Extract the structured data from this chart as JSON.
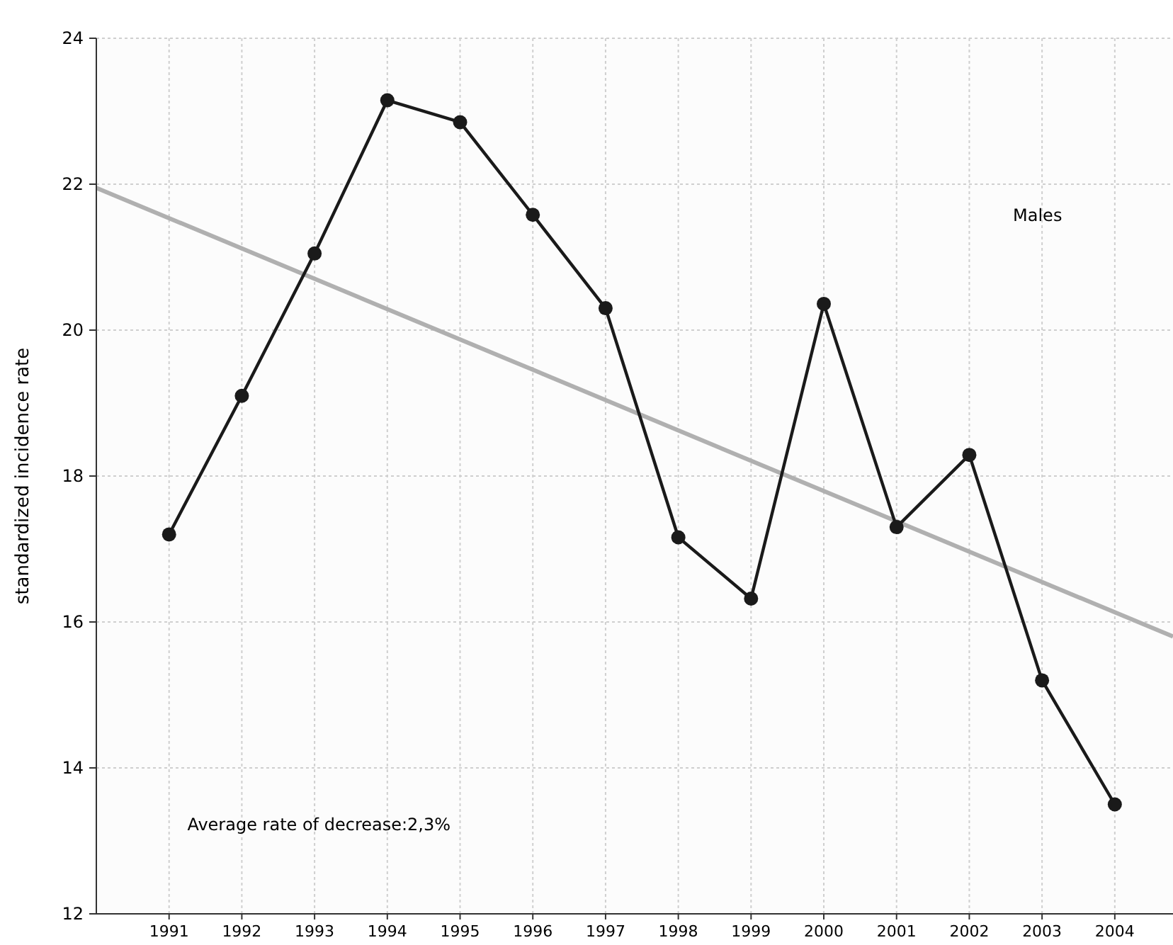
{
  "chart_data": {
    "type": "line",
    "ylabel": "standardized incidence rate",
    "x": [
      1991,
      1992,
      1993,
      1994,
      1995,
      1996,
      1997,
      1998,
      1999,
      2000,
      2001,
      2002,
      2003,
      2004
    ],
    "series": [
      {
        "color": "#1a1a1a",
        "values": [
          17.2,
          19.1,
          21.05,
          23.15,
          22.85,
          21.58,
          20.3,
          17.16,
          16.32,
          20.36,
          17.3,
          18.29,
          15.2,
          13.5
        ],
        "marker": "circle"
      },
      {
        "type": "line",
        "color": "#b0b0b0",
        "x": [
          1990,
          2004.8
        ],
        "values": [
          21.95,
          15.8
        ],
        "marker": "none"
      }
    ],
    "xlim": [
      1990,
      2004.8
    ],
    "xticks": [
      1991,
      1992,
      1993,
      1994,
      1995,
      1996,
      1997,
      1998,
      1999,
      2000,
      2001,
      2002,
      2003,
      2004
    ],
    "ylim": [
      12,
      24
    ],
    "yticks": [
      12,
      14,
      16,
      18,
      20,
      22,
      24
    ],
    "grid": true,
    "annotations": [
      "Males",
      "Average rate of decrease:2,3%"
    ]
  }
}
